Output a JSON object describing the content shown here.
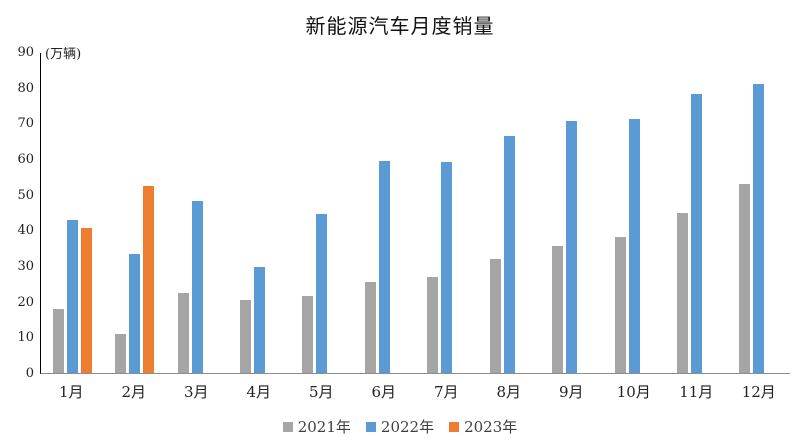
{
  "chart_data": {
    "type": "bar",
    "title": "新能源汽车月度销量",
    "ylabel": "(万辆)",
    "xlabel": "",
    "categories": [
      "1月",
      "2月",
      "3月",
      "4月",
      "5月",
      "6月",
      "7月",
      "8月",
      "9月",
      "10月",
      "11月",
      "12月"
    ],
    "series": [
      {
        "name": "2021年",
        "color": "#A5A5A5",
        "values": [
          17.9,
          11.0,
          22.6,
          20.6,
          21.7,
          25.6,
          27.1,
          32.1,
          35.7,
          38.3,
          45.0,
          53.1
        ]
      },
      {
        "name": "2022年",
        "color": "#5B9BD5",
        "values": [
          43.1,
          33.4,
          48.4,
          29.9,
          44.7,
          59.6,
          59.3,
          66.6,
          70.8,
          71.4,
          78.6,
          81.4
        ]
      },
      {
        "name": "2023年",
        "color": "#ED7D31",
        "values": [
          40.8,
          52.5,
          null,
          null,
          null,
          null,
          null,
          null,
          null,
          null,
          null,
          null
        ]
      }
    ],
    "ylim": [
      0,
      90
    ],
    "yticks": [
      0,
      10,
      20,
      30,
      40,
      50,
      60,
      70,
      80,
      90
    ],
    "grid": false,
    "legend_position": "bottom",
    "axis_colors": {
      "y_axis": "#000000",
      "x_axis": "#8c8c8c"
    }
  }
}
